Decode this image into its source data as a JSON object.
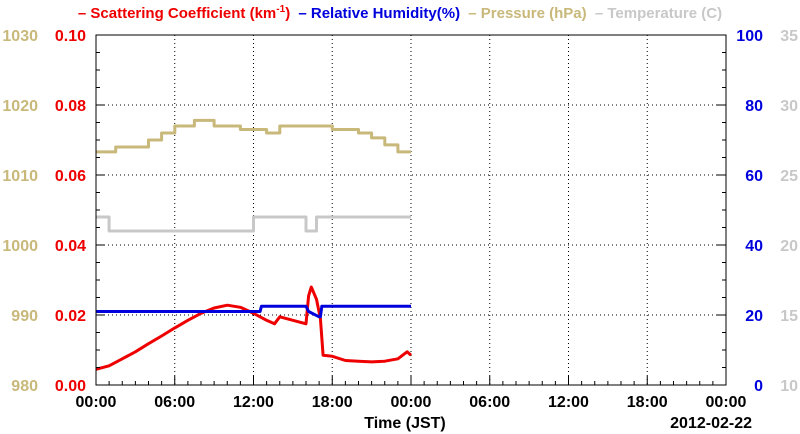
{
  "chart_data": {
    "type": "line",
    "xlabel": "Time (JST)",
    "date_label": "2012-02-22",
    "x_tick_labels": [
      "00:00",
      "06:00",
      "12:00",
      "18:00",
      "00:00",
      "06:00",
      "12:00",
      "18:00",
      "00:00"
    ],
    "x_range_hours": [
      0,
      48
    ],
    "grid": true,
    "legend_position": "top",
    "axes": {
      "pressure": {
        "label": "Pressure (hPa)",
        "color": "#c8b87a",
        "ylim": [
          980,
          1030
        ],
        "ticks": [
          "980",
          "990",
          "1000",
          "1010",
          "1020",
          "1030"
        ]
      },
      "scattering": {
        "label": "Scattering Coefficient (km",
        "label_sup": "-1",
        "label_end": ")",
        "color": "#ee0000",
        "ylim": [
          0.0,
          0.1
        ],
        "ticks": [
          "0.00",
          "0.02",
          "0.04",
          "0.06",
          "0.08",
          "0.10"
        ]
      },
      "humidity": {
        "label": "Relative Humidity(%)",
        "color": "#0000dd",
        "ylim": [
          0,
          100
        ],
        "ticks": [
          "0",
          "20",
          "40",
          "60",
          "80",
          "100"
        ]
      },
      "temperature": {
        "label": "Temperature (C)",
        "color": "#c8c8c8",
        "ylim": [
          10,
          35
        ],
        "ticks": [
          "10",
          "15",
          "20",
          "25",
          "30",
          "35"
        ]
      }
    },
    "series": [
      {
        "name": "Scattering Coefficient (km-1)",
        "axis": "scattering",
        "color": "#ee0000",
        "x": [
          0,
          1,
          2,
          3,
          4,
          5,
          6,
          7,
          8,
          9,
          10,
          11,
          12,
          13,
          13.6,
          14,
          15,
          16,
          16.2,
          16.4,
          16.8,
          17.1,
          17.3,
          18,
          19,
          20,
          21,
          22,
          23,
          23.7,
          24
        ],
        "y": [
          0.0045,
          0.0055,
          0.0075,
          0.0095,
          0.0118,
          0.014,
          0.0163,
          0.0185,
          0.0205,
          0.022,
          0.0228,
          0.0222,
          0.0205,
          0.0185,
          0.0175,
          0.0195,
          0.0185,
          0.0175,
          0.0255,
          0.028,
          0.0245,
          0.019,
          0.0085,
          0.0082,
          0.007,
          0.0068,
          0.0066,
          0.0068,
          0.0075,
          0.0095,
          0.0085
        ]
      },
      {
        "name": "Relative Humidity(%)",
        "axis": "humidity",
        "color": "#0000dd",
        "x": [
          0,
          12.5,
          12.6,
          16,
          16.2,
          17,
          17.1,
          17.2,
          24
        ],
        "y": [
          21,
          21,
          22.5,
          22.5,
          21,
          19.5,
          19.5,
          22.5,
          22.5
        ]
      },
      {
        "name": "Pressure (hPa)",
        "axis": "pressure",
        "color": "#c8b87a",
        "x": [
          0,
          1.5,
          1.5,
          4,
          4,
          5,
          5,
          6,
          6,
          7.5,
          7.5,
          9,
          9,
          11,
          11,
          13,
          13,
          14,
          14,
          17,
          17,
          18,
          18,
          20,
          20,
          21,
          21,
          22,
          22,
          23,
          23,
          24
        ],
        "y": [
          1013.3,
          1013.3,
          1014,
          1014,
          1015,
          1015,
          1016,
          1016,
          1017,
          1017,
          1017.8,
          1017.8,
          1017,
          1017,
          1016.5,
          1016.5,
          1016,
          1016,
          1017,
          1017,
          1017,
          1017,
          1016.5,
          1016.5,
          1016,
          1016,
          1015.3,
          1015.3,
          1014.3,
          1014.3,
          1013.3,
          1013.3
        ]
      },
      {
        "name": "Temperature (C)",
        "axis": "temperature",
        "color": "#c8c8c8",
        "x": [
          0,
          1,
          1,
          12,
          12,
          12.5,
          12.5,
          16,
          16,
          16.8,
          16.8,
          24
        ],
        "y": [
          22,
          22,
          21,
          21,
          22,
          22,
          22,
          22,
          21,
          21,
          22,
          22
        ]
      }
    ]
  }
}
